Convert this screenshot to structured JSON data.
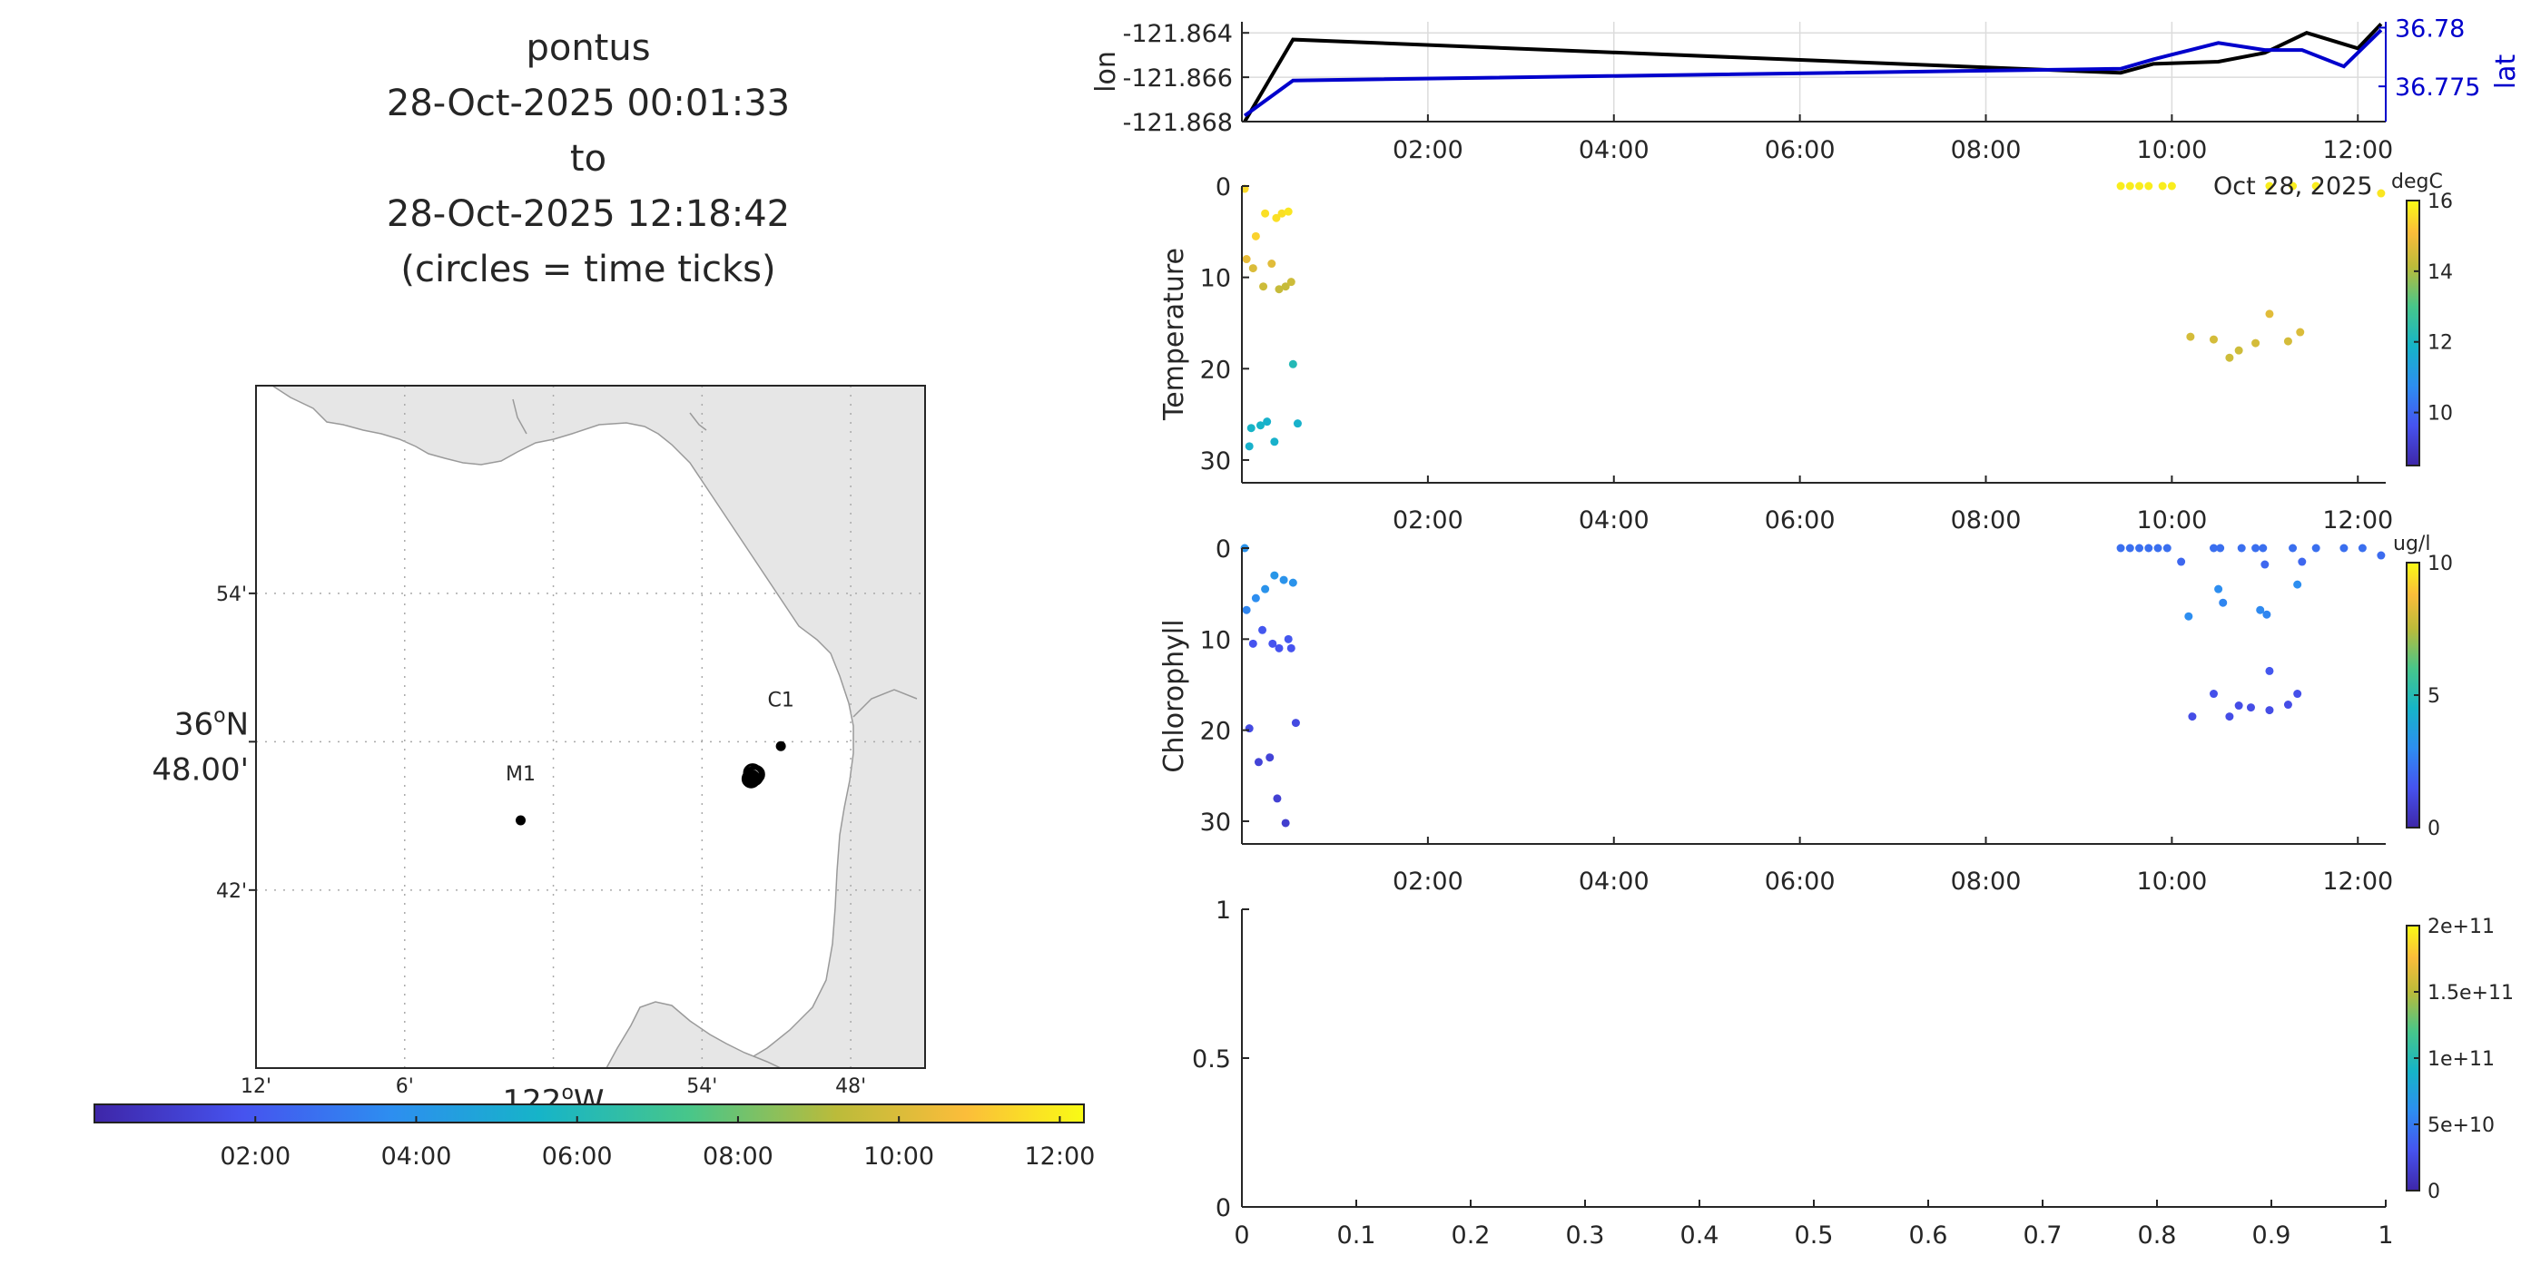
{
  "chart_data": [
    {
      "type": "line",
      "name": "position-timeseries",
      "title_lines": [
        "pontus",
        "28-Oct-2025 00:01:33",
        "to",
        "28-Oct-2025 12:18:42",
        "(circles = time ticks)"
      ],
      "ylabel_left": "lon",
      "ylabel_right": "lat",
      "left_ticks": [
        "-121.864",
        "-121.866",
        "-121.868"
      ],
      "left_tick_values": [
        -121.864,
        -121.866,
        -121.868
      ],
      "right_ticks": [
        "36.78",
        "36.775"
      ],
      "right_tick_values": [
        36.78,
        36.775
      ],
      "ylim_left": [
        -121.868,
        -121.8635
      ],
      "ylim_right": [
        36.772,
        36.7805
      ],
      "xlim": [
        0.0,
        12.3
      ],
      "x_ticks": [
        "02:00",
        "04:00",
        "06:00",
        "08:00",
        "10:00",
        "12:00"
      ],
      "x_tick_values": [
        2,
        4,
        6,
        8,
        10,
        12
      ],
      "date_label": "Oct 28, 2025",
      "colors": {
        "lon": "#000000",
        "lat": "#0000cc"
      },
      "series": [
        {
          "name": "lon",
          "x": [
            0.03,
            0.55,
            9.45,
            9.8,
            10.5,
            11.0,
            11.45,
            12.0,
            12.25
          ],
          "y": [
            -121.868,
            -121.8643,
            -121.8658,
            -121.8654,
            -121.8653,
            -121.8649,
            -121.864,
            -121.8647,
            -121.8636
          ]
        },
        {
          "name": "lat",
          "x": [
            0.03,
            0.55,
            9.45,
            9.8,
            10.0,
            10.5,
            11.0,
            11.4,
            11.85,
            12.25
          ],
          "y": [
            36.7725,
            36.7755,
            36.7765,
            36.7773,
            36.7777,
            36.7787,
            36.7781,
            36.7781,
            36.7767,
            36.7798
          ]
        }
      ]
    },
    {
      "type": "scatter",
      "name": "temperature",
      "ylabel": "Temperature",
      "ylim": [
        0,
        31
      ],
      "y_ticks": [
        "0",
        "10",
        "20",
        "30"
      ],
      "y_tick_values": [
        0,
        10,
        20,
        30
      ],
      "xlim": [
        0.0,
        12.3
      ],
      "x_ticks": [
        "02:00",
        "04:00",
        "06:00",
        "08:00",
        "10:00",
        "12:00"
      ],
      "x_tick_values": [
        2,
        4,
        6,
        8,
        10,
        12
      ],
      "colorbar": {
        "label": "degC",
        "range": [
          8.5,
          16
        ],
        "ticks": [
          "16",
          "14",
          "12",
          "10"
        ],
        "tick_values": [
          16,
          14,
          12,
          10
        ]
      },
      "points": [
        {
          "x": 0.03,
          "depth": 0.3,
          "value": 15.5
        },
        {
          "x": 0.05,
          "depth": 8.0,
          "value": 14.8
        },
        {
          "x": 0.08,
          "depth": 28.5,
          "value": 11.8
        },
        {
          "x": 0.1,
          "depth": 26.5,
          "value": 11.9
        },
        {
          "x": 0.12,
          "depth": 9.0,
          "value": 14.6
        },
        {
          "x": 0.15,
          "depth": 5.5,
          "value": 15.4
        },
        {
          "x": 0.2,
          "depth": 26.2,
          "value": 11.9
        },
        {
          "x": 0.23,
          "depth": 11.0,
          "value": 14.4
        },
        {
          "x": 0.25,
          "depth": 3.0,
          "value": 15.6
        },
        {
          "x": 0.27,
          "depth": 25.8,
          "value": 11.8
        },
        {
          "x": 0.32,
          "depth": 8.5,
          "value": 14.7
        },
        {
          "x": 0.35,
          "depth": 28.0,
          "value": 11.8
        },
        {
          "x": 0.37,
          "depth": 3.5,
          "value": 15.6
        },
        {
          "x": 0.4,
          "depth": 11.3,
          "value": 14.3
        },
        {
          "x": 0.43,
          "depth": 3.0,
          "value": 15.6
        },
        {
          "x": 0.47,
          "depth": 11.0,
          "value": 14.3
        },
        {
          "x": 0.5,
          "depth": 2.8,
          "value": 15.7
        },
        {
          "x": 0.53,
          "depth": 10.5,
          "value": 14.4
        },
        {
          "x": 0.55,
          "depth": 19.5,
          "value": 12.2
        },
        {
          "x": 0.6,
          "depth": 26.0,
          "value": 11.8
        },
        {
          "x": 9.45,
          "depth": 0.0,
          "value": 15.8
        },
        {
          "x": 9.55,
          "depth": 0.0,
          "value": 15.8
        },
        {
          "x": 9.65,
          "depth": 0.0,
          "value": 15.8
        },
        {
          "x": 9.75,
          "depth": 0.0,
          "value": 15.8
        },
        {
          "x": 9.9,
          "depth": 0.0,
          "value": 15.8
        },
        {
          "x": 10.0,
          "depth": 0.0,
          "value": 15.8
        },
        {
          "x": 10.2,
          "depth": 16.5,
          "value": 14.5
        },
        {
          "x": 10.45,
          "depth": 16.8,
          "value": 14.5
        },
        {
          "x": 10.62,
          "depth": 18.8,
          "value": 14.4
        },
        {
          "x": 10.72,
          "depth": 18.0,
          "value": 14.4
        },
        {
          "x": 10.9,
          "depth": 17.2,
          "value": 14.5
        },
        {
          "x": 11.05,
          "depth": 14.0,
          "value": 14.7
        },
        {
          "x": 11.25,
          "depth": 17.0,
          "value": 14.5
        },
        {
          "x": 11.38,
          "depth": 16.0,
          "value": 14.6
        },
        {
          "x": 11.05,
          "depth": 0.0,
          "value": 15.8
        },
        {
          "x": 11.3,
          "depth": 0.0,
          "value": 15.8
        },
        {
          "x": 11.55,
          "depth": 0.0,
          "value": 15.8
        },
        {
          "x": 12.25,
          "depth": 0.8,
          "value": 15.7
        }
      ]
    },
    {
      "type": "scatter",
      "name": "chlorophyll",
      "ylabel": "Chlorophyll",
      "ylim": [
        0,
        31
      ],
      "y_ticks": [
        "0",
        "10",
        "20",
        "30"
      ],
      "y_tick_values": [
        0,
        10,
        20,
        30
      ],
      "xlim": [
        0.0,
        12.3
      ],
      "x_ticks": [
        "02:00",
        "04:00",
        "06:00",
        "08:00",
        "10:00",
        "12:00"
      ],
      "x_tick_values": [
        2,
        4,
        6,
        8,
        10,
        12
      ],
      "colorbar": {
        "label": "ug/l",
        "range": [
          0,
          10
        ],
        "ticks": [
          "10",
          "5",
          "0"
        ],
        "tick_values": [
          10,
          5,
          0
        ]
      },
      "points": [
        {
          "x": 0.03,
          "depth": 0.0,
          "value": 3.2
        },
        {
          "x": 0.05,
          "depth": 6.8,
          "value": 2.8
        },
        {
          "x": 0.08,
          "depth": 19.8,
          "value": 1.2
        },
        {
          "x": 0.12,
          "depth": 10.5,
          "value": 1.5
        },
        {
          "x": 0.15,
          "depth": 5.5,
          "value": 3.0
        },
        {
          "x": 0.18,
          "depth": 23.5,
          "value": 1.0
        },
        {
          "x": 0.22,
          "depth": 9.0,
          "value": 1.6
        },
        {
          "x": 0.25,
          "depth": 4.5,
          "value": 3.2
        },
        {
          "x": 0.3,
          "depth": 23.0,
          "value": 1.0
        },
        {
          "x": 0.33,
          "depth": 10.5,
          "value": 1.5
        },
        {
          "x": 0.35,
          "depth": 3.0,
          "value": 3.3
        },
        {
          "x": 0.38,
          "depth": 27.5,
          "value": 0.9
        },
        {
          "x": 0.4,
          "depth": 11.0,
          "value": 1.5
        },
        {
          "x": 0.45,
          "depth": 3.5,
          "value": 3.2
        },
        {
          "x": 0.47,
          "depth": 30.2,
          "value": 0.8
        },
        {
          "x": 0.5,
          "depth": 10.0,
          "value": 1.6
        },
        {
          "x": 0.53,
          "depth": 11.0,
          "value": 1.5
        },
        {
          "x": 0.55,
          "depth": 3.8,
          "value": 3.2
        },
        {
          "x": 0.58,
          "depth": 19.2,
          "value": 1.2
        },
        {
          "x": 9.45,
          "depth": 0.0,
          "value": 2.2
        },
        {
          "x": 9.55,
          "depth": 0.0,
          "value": 2.2
        },
        {
          "x": 9.65,
          "depth": 0.0,
          "value": 2.2
        },
        {
          "x": 9.75,
          "depth": 0.0,
          "value": 2.2
        },
        {
          "x": 9.85,
          "depth": 0.0,
          "value": 2.2
        },
        {
          "x": 9.95,
          "depth": 0.0,
          "value": 2.2
        },
        {
          "x": 10.1,
          "depth": 1.5,
          "value": 2.0
        },
        {
          "x": 10.18,
          "depth": 7.5,
          "value": 3.0
        },
        {
          "x": 10.22,
          "depth": 18.5,
          "value": 1.3
        },
        {
          "x": 10.45,
          "depth": 0.0,
          "value": 2.2
        },
        {
          "x": 10.45,
          "depth": 16.0,
          "value": 1.4
        },
        {
          "x": 10.5,
          "depth": 4.5,
          "value": 3.0
        },
        {
          "x": 10.52,
          "depth": 0.0,
          "value": 2.2
        },
        {
          "x": 10.55,
          "depth": 6.0,
          "value": 2.8
        },
        {
          "x": 10.62,
          "depth": 18.5,
          "value": 1.3
        },
        {
          "x": 10.72,
          "depth": 17.3,
          "value": 1.3
        },
        {
          "x": 10.75,
          "depth": 0.0,
          "value": 2.2
        },
        {
          "x": 10.85,
          "depth": 17.5,
          "value": 1.3
        },
        {
          "x": 10.9,
          "depth": 0.0,
          "value": 2.2
        },
        {
          "x": 10.95,
          "depth": 6.8,
          "value": 2.9
        },
        {
          "x": 10.98,
          "depth": 0.0,
          "value": 2.2
        },
        {
          "x": 11.0,
          "depth": 1.8,
          "value": 2.0
        },
        {
          "x": 11.02,
          "depth": 7.3,
          "value": 2.8
        },
        {
          "x": 11.05,
          "depth": 13.5,
          "value": 1.6
        },
        {
          "x": 11.05,
          "depth": 17.8,
          "value": 1.3
        },
        {
          "x": 11.25,
          "depth": 17.2,
          "value": 1.3
        },
        {
          "x": 11.3,
          "depth": 0.0,
          "value": 2.2
        },
        {
          "x": 11.35,
          "depth": 4.0,
          "value": 3.0
        },
        {
          "x": 11.35,
          "depth": 16.0,
          "value": 1.4
        },
        {
          "x": 11.4,
          "depth": 1.5,
          "value": 2.0
        },
        {
          "x": 11.55,
          "depth": 0.0,
          "value": 2.2
        },
        {
          "x": 11.85,
          "depth": 0.0,
          "value": 2.2
        },
        {
          "x": 12.05,
          "depth": 0.0,
          "value": 2.2
        },
        {
          "x": 12.25,
          "depth": 0.8,
          "value": 2.1
        }
      ]
    },
    {
      "type": "scatter",
      "name": "empty-panel",
      "xlim": [
        0,
        1
      ],
      "ylim": [
        0,
        1
      ],
      "x_ticks": [
        "0",
        "0.1",
        "0.2",
        "0.3",
        "0.4",
        "0.5",
        "0.6",
        "0.7",
        "0.8",
        "0.9",
        "1"
      ],
      "x_tick_values": [
        0,
        0.1,
        0.2,
        0.3,
        0.4,
        0.5,
        0.6,
        0.7,
        0.8,
        0.9,
        1
      ],
      "y_ticks": [
        "1",
        "0.5",
        "0"
      ],
      "y_tick_values": [
        1,
        0.5,
        0
      ],
      "colorbar": {
        "label": "",
        "range": [
          0,
          200000000000.0
        ],
        "ticks": [
          "2e+11",
          "1.5e+11",
          "1e+11",
          "5e+10",
          "0"
        ],
        "tick_values": [
          200000000000.0,
          150000000000.0,
          100000000000.0,
          50000000000.0,
          0
        ]
      },
      "points": []
    },
    {
      "type": "map",
      "name": "track-map",
      "xlim_deg": [
        -122.2,
        -121.75
      ],
      "ylim_deg": [
        36.58,
        37.04
      ],
      "lon_ticks": [
        "12'",
        "6'",
        "122°W",
        "54'",
        "48'"
      ],
      "lon_tick_values": [
        -122.2,
        -122.1,
        -122.0,
        -121.9,
        -121.8
      ],
      "lon_main_label": "122",
      "lon_main_suffix": "W",
      "degree_sign": "o",
      "lat_ticks": [
        "54'",
        "36°N 48.00'",
        "42'"
      ],
      "lat_tick_values": [
        36.9,
        36.8,
        36.7
      ],
      "lat_main_label": "36",
      "lat_main_suffix": "N",
      "lat_main_minutes": "48.00'",
      "stations": [
        {
          "label": "M1",
          "lon": -122.022,
          "lat": 36.747
        },
        {
          "label": "C1",
          "lon": -121.847,
          "lat": 36.797
        }
      ],
      "track_points": [
        {
          "lon": -121.867,
          "lat": 36.775
        },
        {
          "lon": -121.866,
          "lat": 36.777
        },
        {
          "lon": -121.866,
          "lat": 36.779
        },
        {
          "lon": -121.865,
          "lat": 36.7765
        },
        {
          "lon": -121.864,
          "lat": 36.778
        }
      ],
      "land_color": "#e6e6e6",
      "coast_color": "#9a9a9a"
    },
    {
      "type": "colorbar",
      "name": "time-colorbar",
      "range": [
        0.0,
        12.3
      ],
      "ticks": [
        "02:00",
        "04:00",
        "06:00",
        "08:00",
        "10:00",
        "12:00"
      ],
      "tick_values": [
        2,
        4,
        6,
        8,
        10,
        12
      ]
    }
  ]
}
